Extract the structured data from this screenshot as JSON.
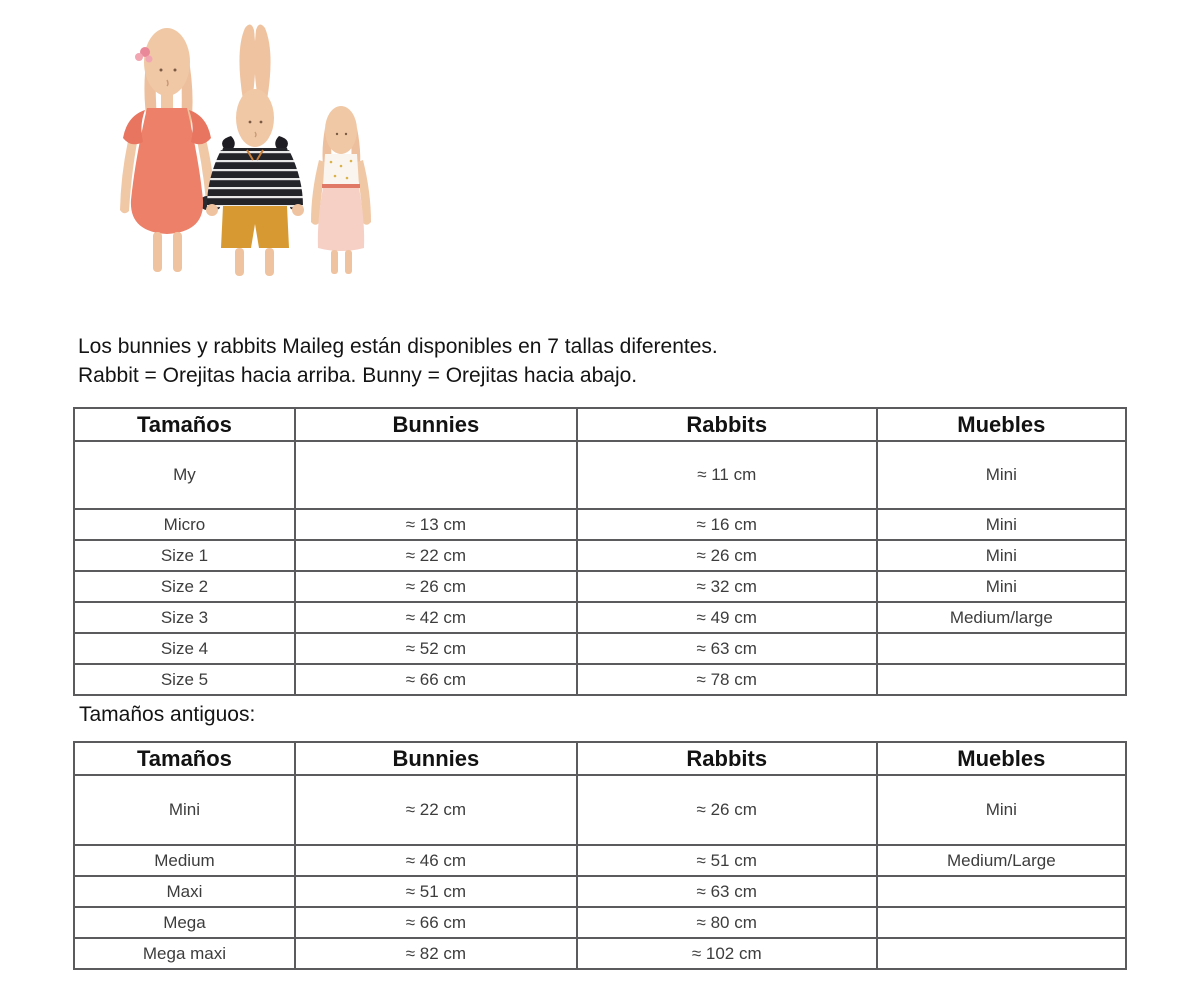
{
  "illustration": {
    "alt": "Tres conejitos de tela Maileg de distintos tamaños",
    "colors": {
      "skin": "#f0c8a6",
      "skin_shade": "#e2b28d",
      "coral_dress": "#ec8069",
      "coral_dark": "#d96a55",
      "sweater_black": "#23232a",
      "sweater_stripe": "#e8e8e8",
      "shorts_mustard": "#d79a33",
      "skirt_pink": "#f6cfc5",
      "bodice_white": "#faf6ef",
      "flower_pink": "#e98898"
    }
  },
  "intro": {
    "line1": "Los bunnies y rabbits Maileg están disponibles en 7 tallas diferentes.",
    "line2": "Rabbit = Orejitas hacia arriba. Bunny = Orejitas hacia abajo."
  },
  "old_sizes_heading": "Tamaños antiguos:",
  "current_table": {
    "headers": [
      "Tamaños",
      "Bunnies",
      "Rabbits",
      "Muebles"
    ],
    "rows": [
      {
        "tall": true,
        "cells": [
          "My",
          "",
          "≈ 11 cm",
          "Mini"
        ]
      },
      {
        "tall": false,
        "cells": [
          "Micro",
          "≈ 13 cm",
          "≈ 16 cm",
          "Mini"
        ]
      },
      {
        "tall": false,
        "cells": [
          "Size 1",
          "≈ 22 cm",
          "≈ 26 cm",
          "Mini"
        ]
      },
      {
        "tall": false,
        "cells": [
          "Size 2",
          "≈ 26 cm",
          "≈ 32 cm",
          "Mini"
        ]
      },
      {
        "tall": false,
        "cells": [
          "Size 3",
          "≈ 42 cm",
          "≈ 49 cm",
          "Medium/large"
        ]
      },
      {
        "tall": false,
        "cells": [
          "Size 4",
          "≈ 52 cm",
          "≈ 63 cm",
          ""
        ]
      },
      {
        "tall": false,
        "cells": [
          "Size 5",
          "≈ 66 cm",
          "≈ 78 cm",
          ""
        ]
      }
    ]
  },
  "old_table": {
    "headers": [
      "Tamaños",
      "Bunnies",
      "Rabbits",
      "Muebles"
    ],
    "rows": [
      {
        "tall": true,
        "cells": [
          "Mini",
          "≈ 22 cm",
          "≈ 26 cm",
          "Mini"
        ]
      },
      {
        "tall": false,
        "cells": [
          "Medium",
          "≈ 46 cm",
          "≈ 51 cm",
          "Medium/Large"
        ]
      },
      {
        "tall": false,
        "cells": [
          "Maxi",
          "≈ 51 cm",
          "≈ 63 cm",
          ""
        ]
      },
      {
        "tall": false,
        "cells": [
          "Mega",
          "≈ 66 cm",
          "≈ 80 cm",
          ""
        ]
      },
      {
        "tall": false,
        "cells": [
          "Mega maxi",
          "≈ 82 cm",
          "≈ 102 cm",
          ""
        ]
      }
    ]
  }
}
